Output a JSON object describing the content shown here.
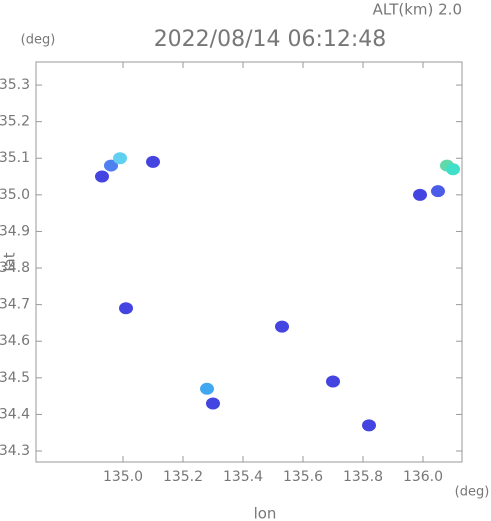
{
  "chart_data": {
    "type": "scatter",
    "title": "2022/08/14 06:12:48",
    "altitude_label": "ALT(km) 2.0",
    "y_unit": "(deg)",
    "x_unit": "(deg)",
    "y_label": "lat",
    "x_label": "lon",
    "xlim": [
      134.71,
      136.13
    ],
    "ylim": [
      34.27,
      35.363
    ],
    "xticks": [
      {
        "value": 135.0,
        "label": "135.0"
      },
      135.2,
      135.4,
      135.6,
      135.8,
      {
        "value": 136.0,
        "label": "136.0"
      }
    ],
    "yticks": [
      34.3,
      34.4,
      34.5,
      34.6,
      34.7,
      34.8,
      34.9,
      {
        "value": 35.0,
        "label": "35.0"
      },
      35.1,
      35.2,
      35.3
    ],
    "x": [
      134.93,
      134.96,
      134.99,
      135.1,
      135.01,
      135.28,
      135.3,
      135.53,
      135.7,
      135.82,
      135.99,
      136.05,
      136.08,
      136.1
    ],
    "y": [
      35.05,
      35.08,
      35.1,
      35.09,
      34.69,
      34.47,
      34.43,
      34.64,
      34.49,
      34.37,
      35.0,
      35.01,
      35.08,
      35.07
    ],
    "colors": [
      "#4444e0",
      "#5080f0",
      "#60d0f0",
      "#4444e0",
      "#4444e0",
      "#40a8f0",
      "#4444e0",
      "#4444e0",
      "#4444e0",
      "#4444e0",
      "#4444e0",
      "#4a5ce8",
      "#60d8a8",
      "#40e0c8"
    ]
  }
}
